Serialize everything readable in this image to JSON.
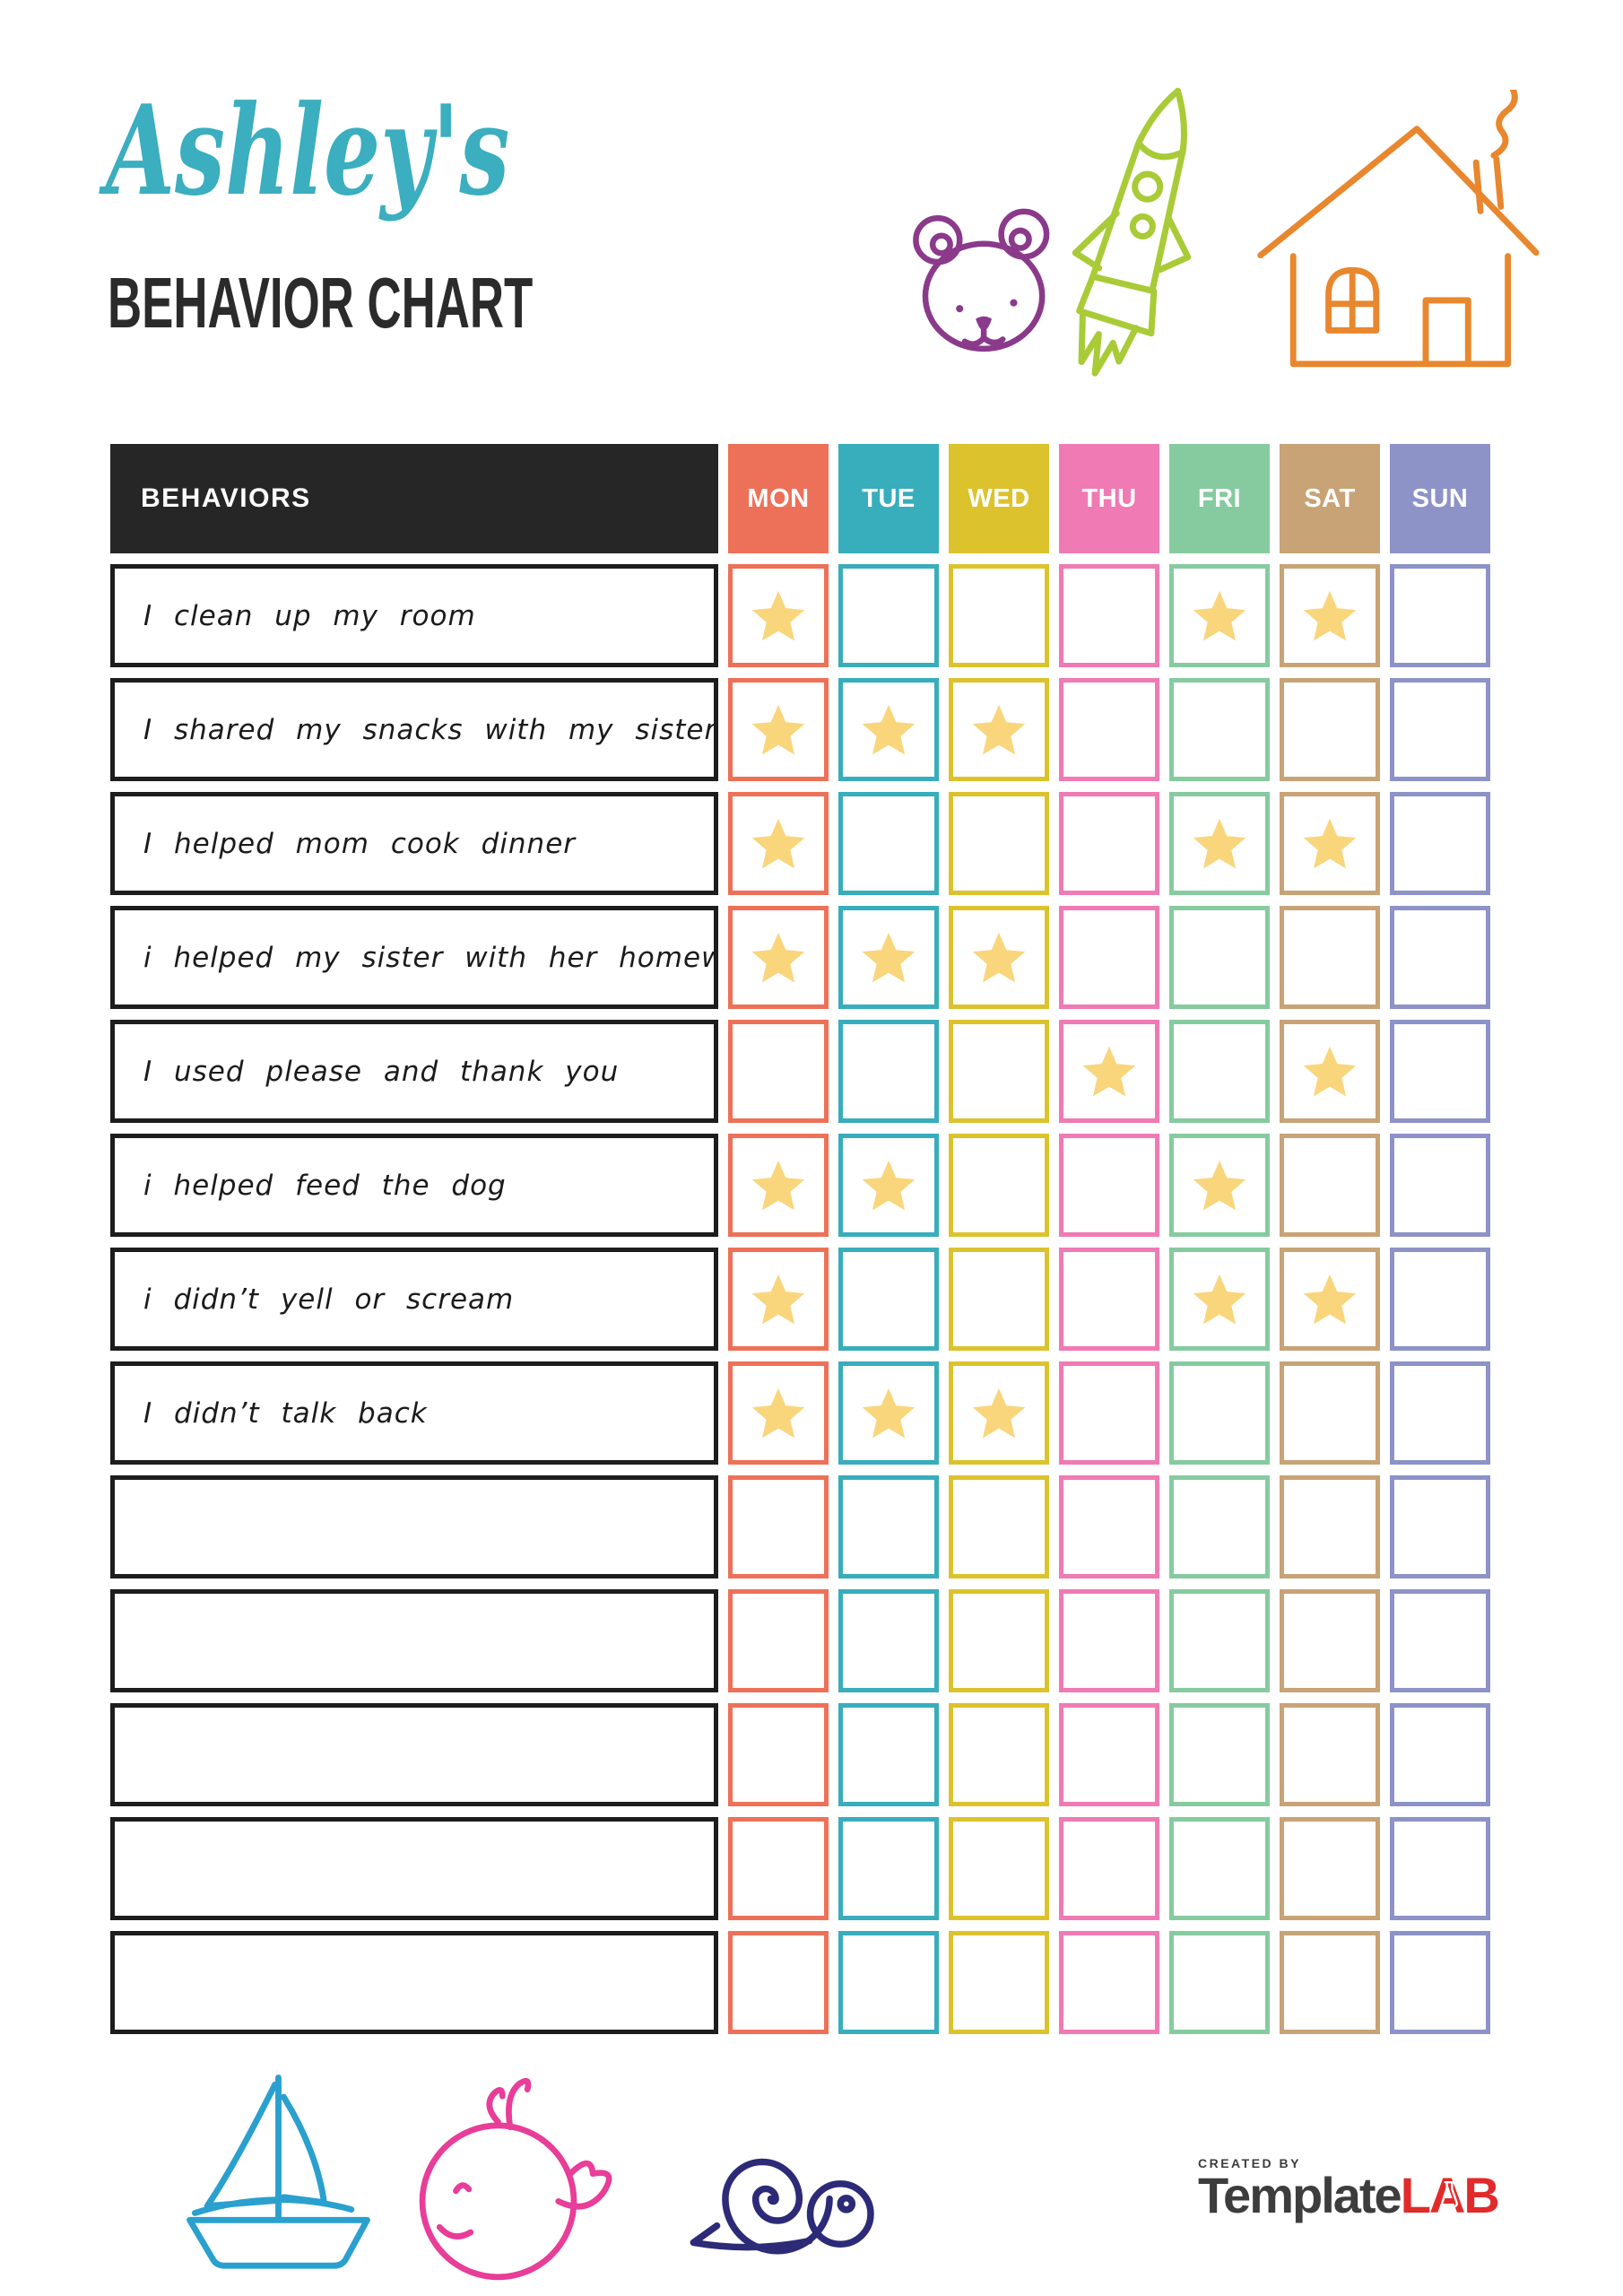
{
  "title": {
    "name": "Ashley's",
    "name_color": "#3BAEBF",
    "subtitle": "BEHAVIOR CHART",
    "subtitle_color": "#2B2B2B"
  },
  "table": {
    "behaviors_label": "BEHAVIORS",
    "header_bg": "#262626",
    "header_text_color": "#FFFFFF",
    "star_color": "#F9D57C",
    "days": [
      {
        "label": "MON",
        "color": "#ED7158"
      },
      {
        "label": "TUE",
        "color": "#38ADBC"
      },
      {
        "label": "WED",
        "color": "#DCC32E"
      },
      {
        "label": "THU",
        "color": "#F07AB4"
      },
      {
        "label": "FRI",
        "color": "#86CB9F"
      },
      {
        "label": "SAT",
        "color": "#C8A376"
      },
      {
        "label": "SUN",
        "color": "#8D92C7"
      }
    ],
    "rows": [
      {
        "behavior": "I clean up my room",
        "stars": [
          "MON",
          "FRI",
          "SAT"
        ]
      },
      {
        "behavior": "I shared my snacks with my sister",
        "stars": [
          "MON",
          "TUE",
          "WED"
        ]
      },
      {
        "behavior": "I helped mom cook dinner",
        "stars": [
          "MON",
          "FRI",
          "SAT"
        ]
      },
      {
        "behavior": "i helped my sister with her homework",
        "stars": [
          "MON",
          "TUE",
          "WED"
        ]
      },
      {
        "behavior": "I used please and thank you",
        "stars": [
          "THU",
          "SAT"
        ]
      },
      {
        "behavior": "i helped feed the dog",
        "stars": [
          "MON",
          "TUE",
          "FRI"
        ]
      },
      {
        "behavior": "i didn’t yell or scream",
        "stars": [
          "MON",
          "FRI",
          "SAT"
        ]
      },
      {
        "behavior": "I didn’t talk back",
        "stars": [
          "MON",
          "TUE",
          "WED"
        ]
      },
      {
        "behavior": "",
        "stars": []
      },
      {
        "behavior": "",
        "stars": []
      },
      {
        "behavior": "",
        "stars": []
      },
      {
        "behavior": "",
        "stars": []
      },
      {
        "behavior": "",
        "stars": []
      }
    ]
  },
  "icon_colors": {
    "bear-doodle-icon": "#8B3A8B",
    "rocket-doodle-icon": "#A9CB37",
    "house-doodle-icon": "#E8872E",
    "sailboat-doodle-icon": "#2AA0CE",
    "whale-doodle-icon": "#E83D98",
    "snail-doodle-icon": "#2D2A77"
  },
  "footer": {
    "created_by": "CREATED BY",
    "brand_primary": "Template",
    "brand_accent": "LAB",
    "brand_primary_color": "#3D3D3D",
    "brand_accent_color": "#E12B2B"
  }
}
